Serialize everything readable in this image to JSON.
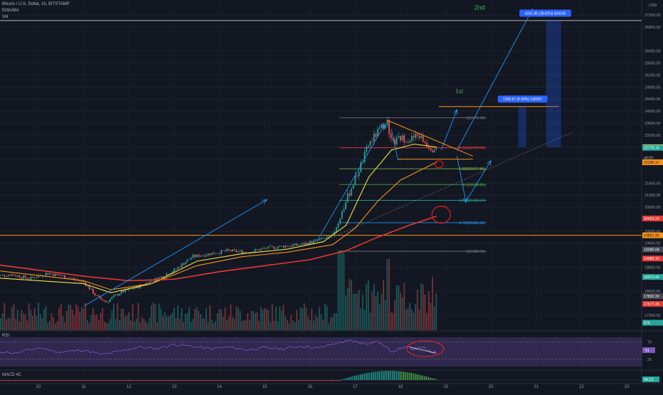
{
  "header": {
    "symbol_line": "Bitcoin / U.S. Dollar, 1h, BITSTAMP",
    "indicator_1": "EMA/MA",
    "indicator_2": "Vol"
  },
  "chart_data": [
    {
      "type": "candlestick",
      "title": "Bitcoin / U.S. Dollar, 1h, BITSTAMP",
      "x_ticks": [
        "10",
        "11",
        "12",
        "13",
        "14",
        "15",
        "16",
        "17",
        "18",
        "19",
        "20",
        "21",
        "22",
        "23"
      ],
      "y_ticks": [
        "27200.00",
        "26800.00",
        "26000.00",
        "25600.00",
        "25200.00",
        "24800.00",
        "24400.00",
        "24000.00",
        "23600.00",
        "23200.00",
        "22800.00",
        "22400.00",
        "21600.00",
        "21200.00",
        "20800.00",
        "20000.00",
        "19600.00",
        "18800.00",
        "18000.00",
        "17200.00"
      ],
      "y_top_label": "USD",
      "ylim": [
        16700,
        27700
      ],
      "price_path": [
        {
          "day": 9.0,
          "price": 18500
        },
        {
          "day": 9.4,
          "price": 18560
        },
        {
          "day": 9.8,
          "price": 18420
        },
        {
          "day": 10.2,
          "price": 18600
        },
        {
          "day": 10.6,
          "price": 18480
        },
        {
          "day": 11.0,
          "price": 18300
        },
        {
          "day": 11.3,
          "price": 17800
        },
        {
          "day": 11.5,
          "price": 17650
        },
        {
          "day": 11.8,
          "price": 17950
        },
        {
          "day": 12.2,
          "price": 18150
        },
        {
          "day": 12.6,
          "price": 18400
        },
        {
          "day": 13.0,
          "price": 18700
        },
        {
          "day": 13.4,
          "price": 19150
        },
        {
          "day": 13.8,
          "price": 19250
        },
        {
          "day": 14.2,
          "price": 19350
        },
        {
          "day": 14.6,
          "price": 19300
        },
        {
          "day": 15.0,
          "price": 19420
        },
        {
          "day": 15.4,
          "price": 19500
        },
        {
          "day": 15.8,
          "price": 19550
        },
        {
          "day": 16.2,
          "price": 19700
        },
        {
          "day": 16.5,
          "price": 19850
        },
        {
          "day": 16.7,
          "price": 20600
        },
        {
          "day": 16.9,
          "price": 21400
        },
        {
          "day": 17.1,
          "price": 22100
        },
        {
          "day": 17.3,
          "price": 22900
        },
        {
          "day": 17.5,
          "price": 23300
        },
        {
          "day": 17.7,
          "price": 23700
        },
        {
          "day": 17.8,
          "price": 22900
        },
        {
          "day": 18.0,
          "price": 23100
        },
        {
          "day": 18.2,
          "price": 23050
        },
        {
          "day": 18.4,
          "price": 23200
        },
        {
          "day": 18.55,
          "price": 22950
        },
        {
          "day": 18.7,
          "price": 22750
        },
        {
          "day": 18.8,
          "price": 22810
        }
      ],
      "moving_averages": [
        {
          "name": "EMA fast",
          "color": "#f0e442",
          "points": [
            [
              9.0,
              18450
            ],
            [
              11.0,
              18250
            ],
            [
              11.6,
              17950
            ],
            [
              12.5,
              18250
            ],
            [
              13.5,
              19000
            ],
            [
              14.5,
              19250
            ],
            [
              15.5,
              19400
            ],
            [
              16.3,
              19650
            ],
            [
              16.8,
              20200
            ],
            [
              17.3,
              21800
            ],
            [
              17.8,
              22700
            ],
            [
              18.3,
              22900
            ],
            [
              18.8,
              22800
            ]
          ]
        },
        {
          "name": "EMA mid",
          "color": "#f7931a",
          "points": [
            [
              9.0,
              18700
            ],
            [
              11.0,
              18350
            ],
            [
              11.6,
              18050
            ],
            [
              12.5,
              18250
            ],
            [
              13.5,
              18850
            ],
            [
              14.5,
              19150
            ],
            [
              15.5,
              19300
            ],
            [
              16.5,
              19550
            ],
            [
              17.0,
              20100
            ],
            [
              17.5,
              21000
            ],
            [
              18.0,
              21700
            ],
            [
              18.4,
              22000
            ],
            [
              18.8,
              22300
            ]
          ]
        },
        {
          "name": "MA slow",
          "color": "#e53935",
          "points": [
            [
              9.0,
              18900
            ],
            [
              10.0,
              18700
            ],
            [
              11.0,
              18500
            ],
            [
              12.0,
              18350
            ],
            [
              13.0,
              18400
            ],
            [
              14.0,
              18650
            ],
            [
              15.0,
              18850
            ],
            [
              16.0,
              19050
            ],
            [
              16.8,
              19350
            ],
            [
              17.5,
              19800
            ],
            [
              18.2,
              20200
            ],
            [
              18.8,
              20500
            ]
          ]
        }
      ],
      "horizontal_levels": [
        {
          "price": 27016.27,
          "label": "27016.27",
          "color": "#b2b5be"
        },
        {
          "price": 19861.96,
          "label": "19861.96",
          "color": "#f7931a"
        }
      ],
      "fibonacci": [
        {
          "ratio": "0",
          "price": 23776.28,
          "label": "0(23776.28)",
          "color": "#787b86"
        },
        {
          "ratio": "0.236",
          "price": 22776.95,
          "label": "0.236(22776.95)",
          "color": "#e53935"
        },
        {
          "ratio": "0.382",
          "price": 22077.86,
          "label": "0.382(22077.86)",
          "color": "#8bc34a"
        },
        {
          "ratio": "0.5",
          "price": 21553.21,
          "label": "0.5(21553.21)",
          "color": "#4caf50"
        },
        {
          "ratio": "0.618",
          "price": 21028.57,
          "label": "0.618(21028.57)",
          "color": "#26a69a"
        },
        {
          "ratio": "0.786",
          "price": 20281.62,
          "label": "0.786(20281.62)",
          "color": "#2196f3"
        },
        {
          "ratio": "1",
          "price": 19330.15,
          "label": "1(19330.15)",
          "color": "#787b86"
        }
      ],
      "annotations": [
        {
          "text": "2nd",
          "color": "#4caf50"
        },
        {
          "text": "1st",
          "color": "#4caf50"
        },
        {
          "text": "1365.67 (6.00%) 136567",
          "kind": "measure",
          "color": "#2962ff"
        },
        {
          "text": "4241.45 (18.62%) 424145",
          "kind": "measure",
          "color": "#2962ff"
        }
      ],
      "price_scale_tags": [
        {
          "price": 22795.83,
          "label": "22795.83",
          "bg": "#f0e442",
          "fg": "#131722"
        },
        {
          "price": 22776.15,
          "label": "22776.15",
          "bg": "#26a69a",
          "fg": "#ffffff"
        },
        {
          "price": 22449.09,
          "label": "49:09",
          "bg": "#131722",
          "fg": "#b2b5be"
        },
        {
          "price": 22296.17,
          "label": "22296.17",
          "bg": "#f7931a",
          "fg": "#131722"
        },
        {
          "price": 20423.23,
          "label": "20423.23",
          "bg": "#e53935",
          "fg": "#ffffff"
        },
        {
          "price": 19861.96,
          "label": "19861.96",
          "bg": "#f7931a",
          "fg": "#131722"
        },
        {
          "price": 19390.09,
          "label": "19390.09",
          "bg": "#434651",
          "fg": "#ffffff"
        },
        {
          "price": 19089.1,
          "label": "19089.10",
          "bg": "#e53935",
          "fg": "#ffffff"
        },
        {
          "price": 18473.44,
          "label": "18473.44",
          "bg": "#26a69a",
          "fg": "#ffffff"
        },
        {
          "price": 17832.3,
          "label": "17832.30",
          "bg": "#434651",
          "fg": "#ffffff"
        },
        {
          "price": 17577.48,
          "label": "17577.48",
          "bg": "#e53935",
          "fg": "#ffffff"
        },
        {
          "price": 16950,
          "label": "576",
          "bg": "#26a69a",
          "fg": "#ffffff"
        }
      ]
    },
    {
      "type": "line",
      "title": "RSI",
      "levels": [
        "75",
        "25"
      ],
      "current_value": "51",
      "ylim": [
        0,
        100
      ],
      "points": [
        [
          9.0,
          50
        ],
        [
          9.5,
          42
        ],
        [
          10.0,
          58
        ],
        [
          10.5,
          45
        ],
        [
          11.0,
          52
        ],
        [
          11.4,
          38
        ],
        [
          11.8,
          48
        ],
        [
          12.2,
          60
        ],
        [
          12.6,
          55
        ],
        [
          13.0,
          68
        ],
        [
          13.4,
          62
        ],
        [
          13.8,
          55
        ],
        [
          14.2,
          60
        ],
        [
          14.6,
          52
        ],
        [
          15.0,
          58
        ],
        [
          15.4,
          55
        ],
        [
          15.8,
          63
        ],
        [
          16.2,
          57
        ],
        [
          16.6,
          72
        ],
        [
          16.9,
          78
        ],
        [
          17.2,
          70
        ],
        [
          17.5,
          76
        ],
        [
          17.8,
          48
        ],
        [
          18.1,
          60
        ],
        [
          18.3,
          55
        ],
        [
          18.5,
          58
        ],
        [
          18.7,
          45
        ],
        [
          18.8,
          51
        ]
      ]
    },
    {
      "type": "bar",
      "title": "MACD 4C",
      "current_value": "54.13",
      "x_range": [
        16.7,
        18.8
      ]
    }
  ]
}
